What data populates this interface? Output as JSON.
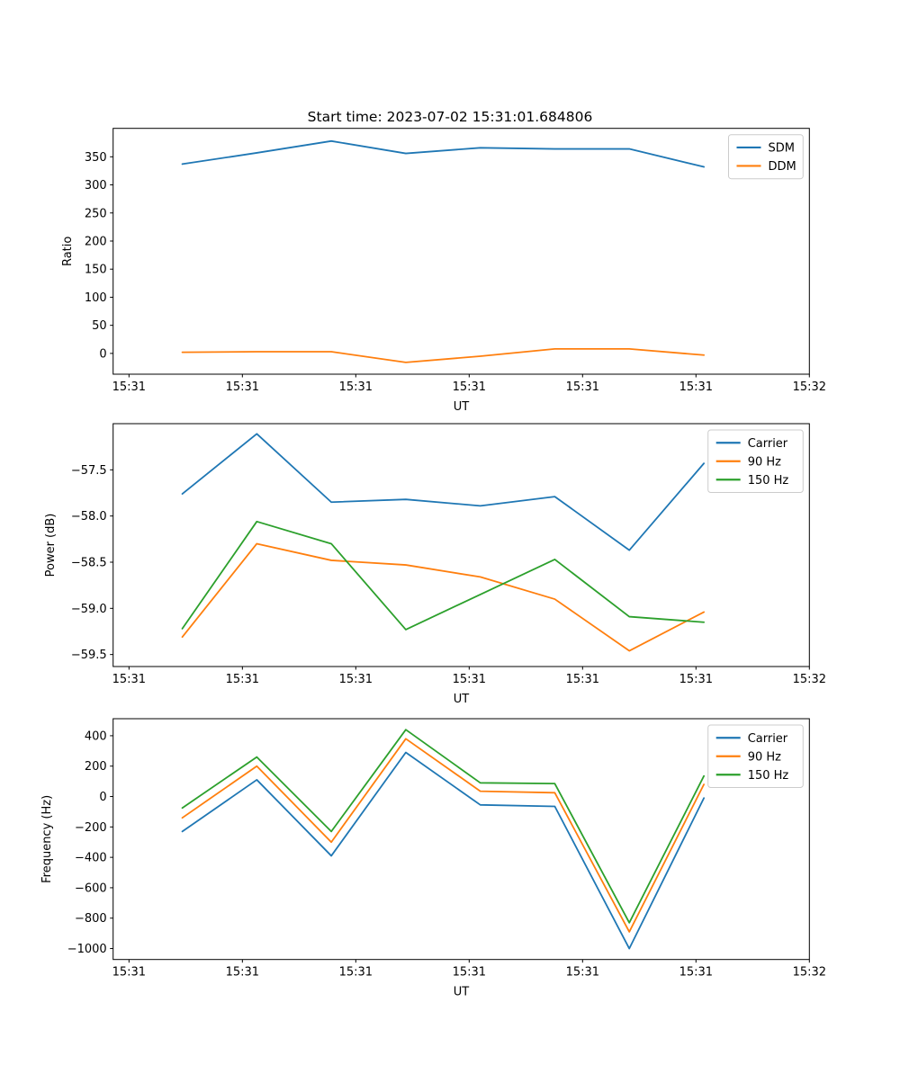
{
  "figure": {
    "background": "#ffffff",
    "axis_color": "#000000",
    "legend_border_color": "#cccccc",
    "legend_background": "rgba(255,255,255,0.8)"
  },
  "palette": {
    "blue": "#1f77b4",
    "orange": "#ff7f0e",
    "green": "#2ca02c"
  },
  "chart_data": [
    {
      "type": "line",
      "title": "Start time: 2023-07-02 15:31:01.684806",
      "xlabel": "UT",
      "ylabel": "Ratio",
      "x_seconds": [
        4.7,
        11.27,
        17.84,
        24.41,
        30.98,
        37.55,
        44.12,
        50.7
      ],
      "xlim": [
        -1.4,
        60.0
      ],
      "xticks": {
        "positions": [
          0,
          10,
          20,
          30,
          40,
          50,
          60
        ],
        "labels": [
          "15:31",
          "15:31",
          "15:31",
          "15:31",
          "15:31",
          "15:31",
          "15:32"
        ]
      },
      "ylim": [
        -37,
        400.6
      ],
      "yticks": {
        "values": [
          0,
          50,
          100,
          150,
          200,
          250,
          300,
          350
        ],
        "labels": [
          "0",
          "50",
          "100",
          "150",
          "200",
          "250",
          "300",
          "350"
        ]
      },
      "legend_position": "upper right",
      "grid": false,
      "series": [
        {
          "name": "SDM",
          "color": "#1f77b4",
          "values": [
            337,
            357,
            378,
            356,
            366,
            364,
            364,
            332
          ]
        },
        {
          "name": "DDM",
          "color": "#ff7f0e",
          "values": [
            2,
            3,
            3,
            -16,
            -5,
            8,
            8,
            -3
          ]
        }
      ]
    },
    {
      "type": "line",
      "title": "",
      "xlabel": "UT",
      "ylabel": "Power (dB)",
      "x_seconds": [
        4.7,
        11.27,
        17.84,
        24.41,
        30.98,
        37.55,
        44.12,
        50.7
      ],
      "xlim": [
        -1.4,
        60.0
      ],
      "xticks": {
        "positions": [
          0,
          10,
          20,
          30,
          40,
          50,
          60
        ],
        "labels": [
          "15:31",
          "15:31",
          "15:31",
          "15:31",
          "15:31",
          "15:31",
          "15:32"
        ]
      },
      "ylim": [
        -59.63,
        -57.0
      ],
      "yticks": {
        "values": [
          -59.5,
          -59.0,
          -58.5,
          -58.0,
          -57.5
        ],
        "labels": [
          "−59.5",
          "−59.0",
          "−58.5",
          "−58.0",
          "−57.5"
        ]
      },
      "legend_position": "upper right",
      "grid": false,
      "series": [
        {
          "name": "Carrier",
          "color": "#1f77b4",
          "values": [
            -57.76,
            -57.11,
            -57.85,
            -57.82,
            -57.89,
            -57.79,
            -58.37,
            -57.43
          ]
        },
        {
          "name": "90 Hz",
          "color": "#ff7f0e",
          "values": [
            -59.31,
            -58.3,
            -58.48,
            -58.53,
            -58.66,
            -58.9,
            -59.46,
            -59.04
          ]
        },
        {
          "name": "150 Hz",
          "color": "#2ca02c",
          "values": [
            -59.22,
            -58.06,
            -58.3,
            -59.23,
            -58.85,
            -58.47,
            -59.09,
            -59.15
          ]
        }
      ]
    },
    {
      "type": "line",
      "title": "",
      "xlabel": "UT",
      "ylabel": "Frequency (Hz)",
      "x_seconds": [
        4.7,
        11.27,
        17.84,
        24.41,
        30.98,
        37.55,
        44.12,
        50.7
      ],
      "xlim": [
        -1.4,
        60.0
      ],
      "xticks": {
        "positions": [
          0,
          10,
          20,
          30,
          40,
          50,
          60
        ],
        "labels": [
          "15:31",
          "15:31",
          "15:31",
          "15:31",
          "15:31",
          "15:31",
          "15:32"
        ]
      },
      "ylim": [
        -1072,
        512
      ],
      "yticks": {
        "values": [
          -1000,
          -800,
          -600,
          -400,
          -200,
          0,
          200,
          400
        ],
        "labels": [
          "−1000",
          "−800",
          "−600",
          "−400",
          "−200",
          "0",
          "200",
          "400"
        ]
      },
      "legend_position": "upper right",
      "grid": false,
      "series": [
        {
          "name": "Carrier",
          "color": "#1f77b4",
          "values": [
            -230,
            110,
            -390,
            290,
            -55,
            -65,
            -1000,
            -10
          ]
        },
        {
          "name": "90 Hz",
          "color": "#ff7f0e",
          "values": [
            -140,
            200,
            -300,
            380,
            35,
            25,
            -890,
            80
          ]
        },
        {
          "name": "150 Hz",
          "color": "#2ca02c",
          "values": [
            -75,
            260,
            -230,
            440,
            90,
            85,
            -830,
            135
          ]
        }
      ]
    }
  ]
}
